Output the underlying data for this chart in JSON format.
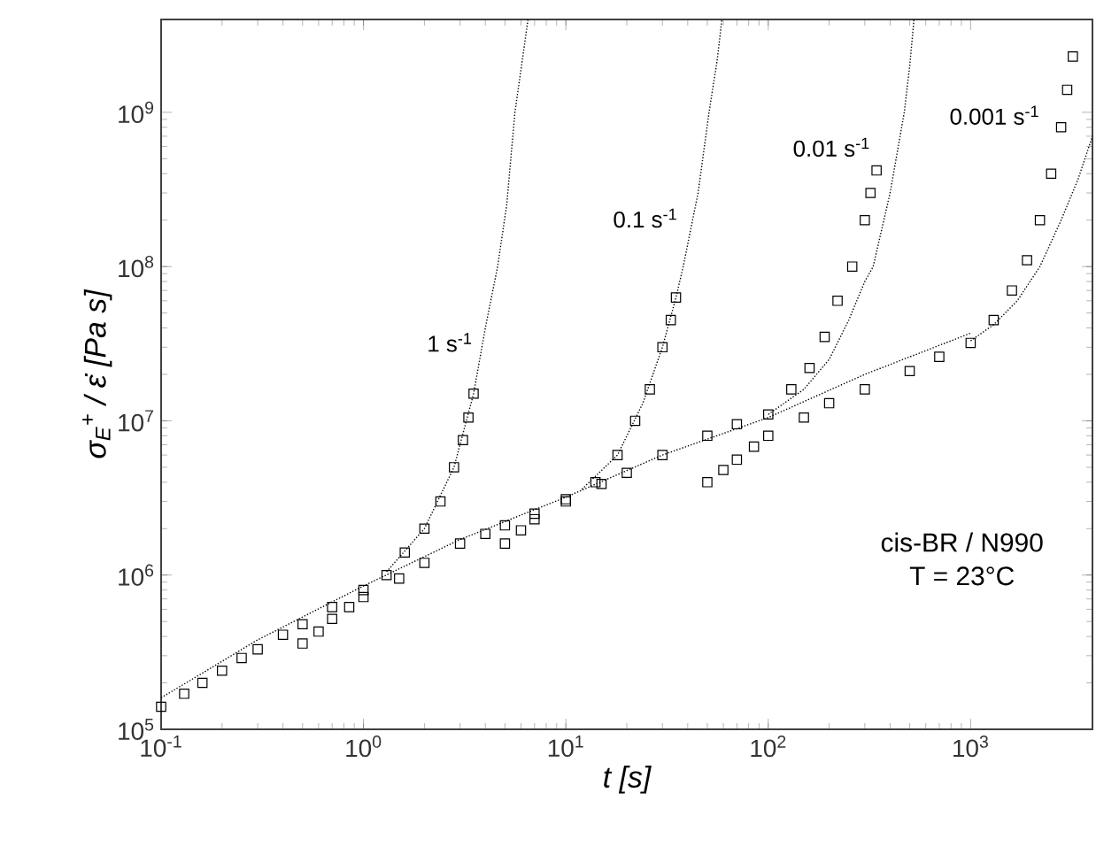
{
  "chart_data": {
    "type": "scatter",
    "xlabel": "t [s]",
    "ylabel": "σ$_{E}$$^{+}$ / ε̇ [Pa s]",
    "log": "xy",
    "marker": "square",
    "grid": false,
    "legend": false,
    "xlim": [
      0.1,
      4000
    ],
    "ylim": [
      100000,
      4000000000
    ],
    "xticks": [
      {
        "value": 0.1,
        "label": "10$^{-1}$"
      },
      {
        "value": 1,
        "label": "10$^{0}$"
      },
      {
        "value": 10,
        "label": "10$^{1}$"
      },
      {
        "value": 100,
        "label": "10$^{2}$"
      },
      {
        "value": 1000,
        "label": "10$^{3}$"
      }
    ],
    "yticks": [
      {
        "value": 100000,
        "label": "10$^{5}$"
      },
      {
        "value": 1000000,
        "label": "10$^{6}$"
      },
      {
        "value": 10000000,
        "label": "10$^{7}$"
      },
      {
        "value": 100000000,
        "label": "10$^{8}$"
      },
      {
        "value": 1000000000,
        "label": "10$^{9}$"
      }
    ],
    "series": [
      {
        "name": "1 s$^{-1}$",
        "color": "#000000",
        "x": [
          0.1,
          0.13,
          0.16,
          0.2,
          0.25,
          0.3,
          0.4,
          0.5,
          0.7,
          1.0,
          1.3,
          1.6,
          2.0,
          2.4,
          2.8,
          3.1,
          3.3,
          3.5
        ],
        "values": [
          140000,
          170000,
          200000,
          240000,
          290000,
          330000,
          410000,
          480000,
          620000,
          800000,
          1000000,
          1400000,
          2000000,
          3000000,
          5000000,
          7500000,
          10500000,
          15000000
        ]
      },
      {
        "name": "0.1 s$^{-1}$",
        "color": "#000000",
        "x": [
          0.5,
          0.6,
          0.7,
          0.85,
          1,
          1.5,
          2,
          3,
          4,
          5,
          7,
          10,
          14,
          18,
          22,
          26,
          30,
          33,
          35
        ],
        "values": [
          360000,
          430000,
          520000,
          620000,
          720000,
          950000,
          1200000,
          1600000,
          1850000,
          2100000,
          2500000,
          3100000,
          4000000,
          6000000,
          10000000,
          16000000,
          30000000,
          45000000,
          63000000
        ]
      },
      {
        "name": "0.01 s$^{-1}$",
        "color": "#000000",
        "x": [
          5,
          6,
          7,
          10,
          15,
          20,
          30,
          50,
          70,
          100,
          130,
          160,
          190,
          220,
          260,
          300,
          320,
          343
        ],
        "values": [
          1600000,
          1950000,
          2300000,
          3000000,
          3900000,
          4600000,
          6000000,
          8000000,
          9500000,
          11000000,
          16000000,
          22000000,
          35000000,
          60000000,
          100000000,
          200000000,
          300000000,
          420000000
        ]
      },
      {
        "name": "0.001 s$^{-1}$",
        "color": "#000000",
        "x": [
          50,
          60,
          70,
          85,
          100,
          150,
          200,
          300,
          500,
          700,
          1000,
          1300,
          1600,
          1900,
          2200,
          2500,
          2800,
          3000,
          3200
        ],
        "values": [
          4000000,
          4800000,
          5600000,
          6800000,
          8000000,
          10500000,
          13000000,
          16000000,
          21000000,
          26000000,
          32000000,
          45000000,
          70000000,
          110000000,
          200000000,
          400000000,
          800000000,
          1400000000,
          2300000000
        ]
      },
      {
        "type": "line",
        "marker": "none",
        "line_style": "dotted",
        "color": "#000000",
        "x": [
          0.1,
          0.3,
          1,
          3,
          10,
          30,
          100,
          300,
          1000
        ],
        "values": [
          160000,
          380000,
          850000,
          1700000,
          3200000,
          6000000,
          10500000,
          20000000,
          37000000
        ]
      },
      {
        "type": "line",
        "marker": "none",
        "line_style": "dotted",
        "color": "#000000",
        "x": [
          1.3,
          2,
          2.8,
          3.5,
          4.0,
          4.6,
          5.1,
          5.6,
          6.1,
          6.5
        ],
        "values": [
          1050000,
          2000000,
          5000000,
          15000000,
          40000000,
          100000000,
          250000000,
          1000000000,
          2200000000,
          4000000000
        ]
      },
      {
        "type": "line",
        "marker": "none",
        "line_style": "dotted",
        "color": "#000000",
        "x": [
          12,
          18,
          24,
          30,
          35,
          38,
          45,
          51,
          56,
          59
        ],
        "values": [
          3600000,
          6000000,
          13000000,
          30000000,
          63000000,
          100000000,
          300000000,
          1000000000,
          2200000000,
          4000000000
        ]
      },
      {
        "type": "line",
        "marker": "none",
        "line_style": "dotted",
        "color": "#000000",
        "x": [
          100,
          150,
          200,
          250,
          300,
          330,
          400,
          470,
          500,
          525
        ],
        "values": [
          11000000,
          16000000,
          25000000,
          45000000,
          80000000,
          100000000,
          300000000,
          1000000000,
          2000000000,
          4000000000
        ]
      },
      {
        "type": "line",
        "marker": "none",
        "line_style": "dotted",
        "color": "#000000",
        "x": [
          1000,
          1300,
          1700,
          2200,
          2800,
          3400,
          4000
        ],
        "values": [
          33000000,
          42000000,
          60000000,
          100000000,
          200000000,
          370000000,
          700000000
        ]
      }
    ],
    "annotations": [
      "cis-BR / N990",
      "T = 23°C"
    ]
  }
}
